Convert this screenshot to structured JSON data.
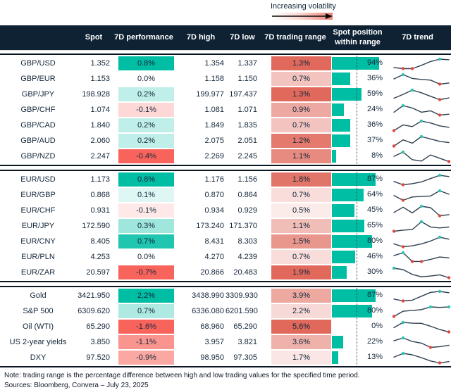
{
  "annotation": {
    "label": "Increasing volatility"
  },
  "colors": {
    "header_bg": "#0E2233",
    "positive": "#00BEA4",
    "negative": "#F8645C",
    "range_max": "#E0695C",
    "bar": "#00BEA4",
    "spark_line": "#2E3F50",
    "spark_high_dot": "#2EC4B0",
    "spark_low_dot": "#E0483E",
    "text": "#13263A",
    "volatility_gradient_end": "#EF8173"
  },
  "chart_data": {
    "type": "table",
    "columns": [
      "",
      "Spot",
      "7D performance",
      "7D high",
      "7D low",
      "7D trading range",
      "Spot position within range",
      "7D trend"
    ],
    "sections": [
      {
        "rows": [
          {
            "name": "GBP/USD",
            "spot": "1.352",
            "perf": "0.8%",
            "high": "1.354",
            "low": "1.337",
            "range": "1.3%",
            "position": "94%",
            "trend": [
              0.12,
              0,
              0,
              0.35,
              0.75,
              1,
              0.93
            ]
          },
          {
            "name": "GBP/EUR",
            "spot": "1.153",
            "perf": "0.0%",
            "high": "1.158",
            "low": "1.150",
            "range": "0.7%",
            "position": "36%",
            "trend": [
              0.55,
              1,
              0.6,
              0.5,
              0.42,
              0,
              0.12
            ]
          },
          {
            "name": "GBP/JPY",
            "spot": "198.928",
            "perf": "0.2%",
            "high": "199.977",
            "low": "197.437",
            "range": "1.3%",
            "position": "59%",
            "trend": [
              0.15,
              0.55,
              1,
              0.72,
              0.35,
              0,
              0.18
            ]
          },
          {
            "name": "GBP/CHF",
            "spot": "1.074",
            "perf": "-0.1%",
            "high": "1.081",
            "low": "1.071",
            "range": "0.9%",
            "position": "24%",
            "trend": [
              0.3,
              1,
              0.75,
              0.3,
              0.45,
              0,
              0.1
            ]
          },
          {
            "name": "GBP/CAD",
            "spot": "1.840",
            "perf": "0.2%",
            "high": "1.849",
            "low": "1.835",
            "range": "0.7%",
            "position": "36%",
            "trend": [
              0,
              0.6,
              0.42,
              1,
              0.8,
              0.5,
              0.35
            ]
          },
          {
            "name": "GBP/AUD",
            "spot": "2.060",
            "perf": "0.2%",
            "high": "2.075",
            "low": "2.051",
            "range": "1.2%",
            "position": "37%",
            "trend": [
              0,
              0.65,
              0.3,
              1,
              0.75,
              0.5,
              0.37
            ]
          },
          {
            "name": "GBP/NZD",
            "spot": "2.247",
            "perf": "-0.4%",
            "high": "2.269",
            "low": "2.245",
            "range": "1.1%",
            "position": "8%",
            "trend": [
              0.55,
              1,
              0.2,
              0.05,
              0.7,
              0.35,
              0
            ]
          }
        ]
      },
      {
        "rows": [
          {
            "name": "EUR/USD",
            "spot": "1.173",
            "perf": "0.8%",
            "high": "1.176",
            "low": "1.156",
            "range": "1.8%",
            "position": "87%",
            "trend": [
              0.35,
              0,
              0.12,
              0.3,
              0.65,
              1,
              0.87
            ]
          },
          {
            "name": "EUR/GBP",
            "spot": "0.868",
            "perf": "0.1%",
            "high": "0.870",
            "low": "0.864",
            "range": "0.7%",
            "position": "64%",
            "trend": [
              0.5,
              0,
              0.35,
              0.4,
              0.45,
              1,
              0.64
            ]
          },
          {
            "name": "EUR/CHF",
            "spot": "0.931",
            "perf": "-0.1%",
            "high": "0.934",
            "low": "0.929",
            "range": "0.5%",
            "position": "45%",
            "trend": [
              0.35,
              0.9,
              0.3,
              1,
              0.85,
              0,
              0.12
            ]
          },
          {
            "name": "EUR/JPY",
            "spot": "172.590",
            "perf": "0.3%",
            "high": "173.240",
            "low": "171.370",
            "range": "1.1%",
            "position": "65%",
            "trend": [
              0,
              0.12,
              0.18,
              1,
              0.45,
              0.35,
              0.45
            ]
          },
          {
            "name": "EUR/CNY",
            "spot": "8.405",
            "perf": "0.7%",
            "high": "8.431",
            "low": "8.303",
            "range": "1.5%",
            "position": "80%",
            "trend": [
              0.3,
              0,
              0.1,
              0.3,
              0.6,
              1,
              0.8
            ]
          },
          {
            "name": "EUR/PLN",
            "spot": "4.253",
            "perf": "0.0%",
            "high": "4.270",
            "low": "4.239",
            "range": "0.7%",
            "position": "46%",
            "trend": [
              0.7,
              1,
              0.08,
              0.08,
              0.3,
              0.55,
              0.46
            ]
          },
          {
            "name": "EUR/ZAR",
            "spot": "20.597",
            "perf": "-0.7%",
            "high": "20.866",
            "low": "20.483",
            "range": "1.9%",
            "position": "30%",
            "trend": [
              1,
              0.85,
              0.35,
              0.1,
              0.18,
              0.3,
              0
            ]
          }
        ]
      },
      {
        "rows": [
          {
            "name": "Gold",
            "spot": "3421.950",
            "perf": "2.2%",
            "high": "3438.990",
            "low": "3309.930",
            "range": "3.9%",
            "position": "87%",
            "trend": [
              0.2,
              0,
              0.08,
              0.5,
              0.9,
              1,
              0.87
            ]
          },
          {
            "name": "S&P 500",
            "spot": "6309.620",
            "perf": "0.7%",
            "high": "6336.080",
            "low": "6201.590",
            "range": "2.2%",
            "position": "80%",
            "trend": [
              0,
              0.55,
              0.62,
              0.72,
              1,
              0.95,
              1
            ]
          },
          {
            "name": "Oil (WTI)",
            "spot": "65.290",
            "perf": "-1.6%",
            "high": "68.960",
            "low": "65.290",
            "range": "5.6%",
            "position": "0%",
            "trend": [
              0.45,
              1,
              0.92,
              0.9,
              0.6,
              0.25,
              0
            ]
          },
          {
            "name": "US 2-year yields",
            "spot": "3.850",
            "perf": "-1.1%",
            "high": "3.957",
            "low": "3.821",
            "range": "3.6%",
            "position": "22%",
            "trend": [
              0.7,
              1,
              0.62,
              0.45,
              0,
              0.08,
              0.22
            ]
          },
          {
            "name": "DXY",
            "spot": "97.520",
            "perf": "-0.9%",
            "high": "98.950",
            "low": "97.305",
            "range": "1.7%",
            "position": "13%",
            "trend": [
              0.6,
              1,
              0.85,
              0.55,
              0.2,
              0,
              0.13
            ]
          }
        ]
      }
    ]
  },
  "notes": [
    "Note: trading range is the percentage difference between high and low trading values for the specified time period.",
    "Sources: Bloomberg, Convera – July 23, 2025"
  ]
}
